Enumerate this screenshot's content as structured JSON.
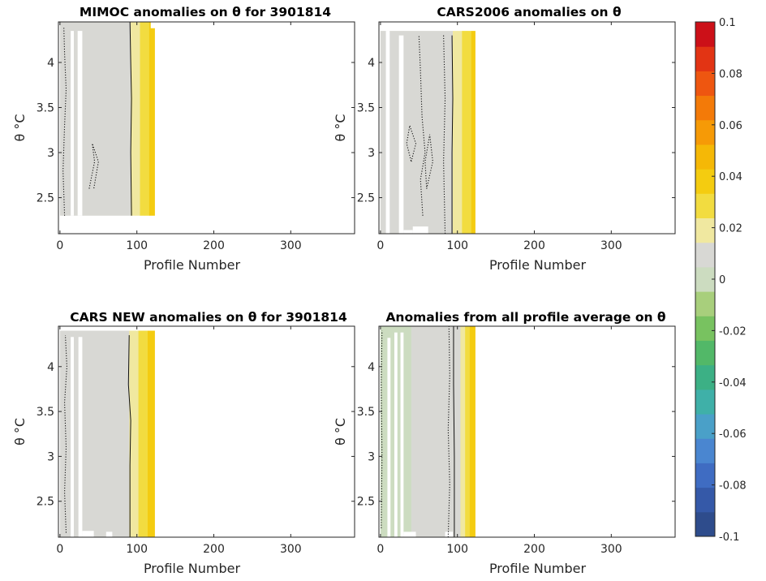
{
  "chart_data": [
    {
      "type": "heatmap",
      "title": "MIMOC anomalies on θ  for 3901814",
      "xlabel": "Profile Number",
      "ylabel": "θ °C",
      "xlim": [
        -2,
        383
      ],
      "ylim": [
        2.1,
        4.45
      ],
      "xticks": [
        0,
        100,
        200,
        300
      ],
      "yticks": [
        2.5,
        3,
        3.5,
        4
      ],
      "y_data_range": [
        2.3,
        4.45
      ],
      "x_data_range": [
        0,
        123
      ],
      "columns": [
        {
          "x0": 0,
          "x1": 8,
          "value": 0.008
        },
        {
          "x0": 8,
          "x1": 30,
          "value": 0.01
        },
        {
          "x0": 30,
          "x1": 92,
          "value": 0.011
        },
        {
          "x0": 92,
          "x1": 98,
          "value": 0.016
        },
        {
          "x0": 98,
          "x1": 104,
          "value": 0.022
        },
        {
          "x0": 104,
          "x1": 110,
          "value": 0.026
        },
        {
          "x0": 110,
          "x1": 116,
          "value": 0.03
        },
        {
          "x0": 116,
          "x1": 123,
          "value": 0.037
        }
      ],
      "gaps": [
        {
          "x0": 14,
          "x1": 18,
          "y0": 2.3,
          "y1": 4.35
        },
        {
          "x0": 23,
          "x1": 29,
          "y0": 2.3,
          "y1": 4.35
        },
        {
          "x0": 118,
          "x1": 124,
          "y0": 4.38,
          "y1": 4.45
        }
      ],
      "zero_contour_x": [
        [
          2.3,
          93
        ],
        [
          3.0,
          92
        ],
        [
          3.6,
          93
        ],
        [
          4.0,
          92
        ],
        [
          4.45,
          91
        ]
      ],
      "dotted_contours": [
        [
          [
            2.3,
            6
          ],
          [
            2.8,
            4
          ],
          [
            3.3,
            6
          ],
          [
            3.7,
            8
          ],
          [
            4.1,
            6
          ],
          [
            4.4,
            5
          ]
        ],
        [
          [
            2.6,
            38
          ],
          [
            2.9,
            45
          ],
          [
            3.1,
            42
          ],
          [
            2.9,
            50
          ],
          [
            2.6,
            44
          ]
        ]
      ]
    },
    {
      "type": "heatmap",
      "title": "CARS2006 anomalies on θ",
      "xlabel": "Profile Number",
      "ylabel": "θ °C",
      "xlim": [
        -2,
        383
      ],
      "ylim": [
        2.1,
        4.45
      ],
      "xticks": [
        0,
        100,
        200,
        300
      ],
      "yticks": [
        2.5,
        3,
        3.5,
        4
      ],
      "y_data_range": [
        2.1,
        4.35
      ],
      "x_data_range": [
        0,
        123
      ],
      "columns": [
        {
          "x0": 0,
          "x1": 30,
          "value": 0.009
        },
        {
          "x0": 30,
          "x1": 94,
          "value": 0.01
        },
        {
          "x0": 94,
          "x1": 100,
          "value": 0.015
        },
        {
          "x0": 100,
          "x1": 106,
          "value": 0.021
        },
        {
          "x0": 106,
          "x1": 112,
          "value": 0.026
        },
        {
          "x0": 112,
          "x1": 118,
          "value": 0.031
        },
        {
          "x0": 118,
          "x1": 123,
          "value": 0.036
        }
      ],
      "gaps": [
        {
          "x0": 7,
          "x1": 12,
          "y0": 2.1,
          "y1": 4.35
        },
        {
          "x0": 24,
          "x1": 30,
          "y0": 2.1,
          "y1": 4.3
        },
        {
          "x0": 30,
          "x1": 42,
          "y0": 2.1,
          "y1": 2.14
        },
        {
          "x0": 42,
          "x1": 62,
          "y0": 2.1,
          "y1": 2.18
        }
      ],
      "zero_contour_x": [
        [
          2.1,
          93
        ],
        [
          3.0,
          93
        ],
        [
          3.6,
          94
        ],
        [
          4.3,
          93
        ]
      ],
      "dotted_contours": [
        [
          [
            2.3,
            55
          ],
          [
            2.7,
            52
          ],
          [
            3.0,
            58
          ],
          [
            3.4,
            54
          ],
          [
            3.9,
            52
          ],
          [
            4.3,
            50
          ]
        ],
        [
          [
            2.9,
            40
          ],
          [
            3.1,
            46
          ],
          [
            3.3,
            38
          ],
          [
            3.1,
            34
          ],
          [
            2.9,
            40
          ]
        ],
        [
          [
            2.6,
            60
          ],
          [
            2.9,
            68
          ],
          [
            3.2,
            64
          ],
          [
            2.9,
            58
          ],
          [
            2.6,
            60
          ]
        ],
        [
          [
            2.1,
            84
          ],
          [
            2.9,
            82
          ],
          [
            3.6,
            84
          ],
          [
            4.3,
            82
          ]
        ]
      ]
    },
    {
      "type": "heatmap",
      "title": "CARS NEW anomalies on θ for 3901814",
      "xlabel": "Profile Number",
      "ylabel": "θ °C",
      "xlim": [
        -2,
        383
      ],
      "ylim": [
        2.1,
        4.45
      ],
      "xticks": [
        0,
        100,
        200,
        300
      ],
      "yticks": [
        2.5,
        3,
        3.5,
        4
      ],
      "y_data_range": [
        2.1,
        4.4
      ],
      "x_data_range": [
        0,
        123
      ],
      "columns": [
        {
          "x0": 0,
          "x1": 30,
          "value": 0.009
        },
        {
          "x0": 30,
          "x1": 90,
          "value": 0.011
        },
        {
          "x0": 90,
          "x1": 96,
          "value": 0.016
        },
        {
          "x0": 96,
          "x1": 102,
          "value": 0.021
        },
        {
          "x0": 102,
          "x1": 108,
          "value": 0.025
        },
        {
          "x0": 108,
          "x1": 114,
          "value": 0.029
        },
        {
          "x0": 114,
          "x1": 123,
          "value": 0.036
        }
      ],
      "gaps": [
        {
          "x0": 14,
          "x1": 18,
          "y0": 2.1,
          "y1": 4.33
        },
        {
          "x0": 24,
          "x1": 29,
          "y0": 2.1,
          "y1": 4.33
        },
        {
          "x0": 29,
          "x1": 44,
          "y0": 2.1,
          "y1": 2.17
        },
        {
          "x0": 60,
          "x1": 68,
          "y0": 2.1,
          "y1": 2.16
        }
      ],
      "zero_contour_x": [
        [
          2.1,
          91
        ],
        [
          2.9,
          91
        ],
        [
          3.4,
          92
        ],
        [
          3.8,
          89
        ],
        [
          4.35,
          90
        ]
      ],
      "dotted_contours": [
        [
          [
            2.15,
            8
          ],
          [
            2.6,
            6
          ],
          [
            3.1,
            8
          ],
          [
            3.6,
            6
          ],
          [
            4.0,
            9
          ],
          [
            4.35,
            7
          ]
        ]
      ]
    },
    {
      "type": "heatmap",
      "title": "Anomalies from all profile average on θ",
      "xlabel": "Profile Number",
      "ylabel": "θ °C",
      "xlim": [
        -2,
        383
      ],
      "ylim": [
        2.1,
        4.45
      ],
      "xticks": [
        0,
        100,
        200,
        300
      ],
      "yticks": [
        2.5,
        3,
        3.5,
        4
      ],
      "y_data_range": [
        2.1,
        4.45
      ],
      "x_data_range": [
        0,
        123
      ],
      "columns": [
        {
          "x0": 0,
          "x1": 40,
          "value": 0.004
        },
        {
          "x0": 40,
          "x1": 80,
          "value": 0.006
        },
        {
          "x0": 80,
          "x1": 96,
          "value": 0.009
        },
        {
          "x0": 96,
          "x1": 104,
          "value": 0.014
        },
        {
          "x0": 104,
          "x1": 110,
          "value": 0.02
        },
        {
          "x0": 110,
          "x1": 116,
          "value": 0.027
        },
        {
          "x0": 116,
          "x1": 123,
          "value": 0.036
        }
      ],
      "gaps": [
        {
          "x0": 9,
          "x1": 13,
          "y0": 2.1,
          "y1": 4.32
        },
        {
          "x0": 18,
          "x1": 22,
          "y0": 2.1,
          "y1": 4.38
        },
        {
          "x0": 26,
          "x1": 30,
          "y0": 2.1,
          "y1": 4.38
        },
        {
          "x0": 30,
          "x1": 46,
          "y0": 2.1,
          "y1": 2.16
        },
        {
          "x0": 84,
          "x1": 94,
          "y0": 2.1,
          "y1": 2.16
        }
      ],
      "zero_contour_x": [
        [
          2.1,
          96
        ],
        [
          3.0,
          96
        ],
        [
          3.8,
          95
        ],
        [
          4.45,
          95
        ]
      ],
      "dotted_contours": [
        [
          [
            2.1,
            88
          ],
          [
            2.7,
            90
          ],
          [
            3.3,
            88
          ],
          [
            3.9,
            90
          ],
          [
            4.45,
            89
          ]
        ],
        [
          [
            2.2,
            1
          ],
          [
            3.0,
            2
          ],
          [
            3.8,
            1
          ],
          [
            4.4,
            2
          ]
        ]
      ]
    }
  ],
  "colorbar": {
    "min": -0.1,
    "max": 0.1,
    "levels": 21,
    "ticks": [
      0.1,
      0.08,
      0.06,
      0.04,
      0.02,
      0,
      -0.02,
      -0.04,
      -0.06,
      -0.08,
      -0.1
    ],
    "tick_labels": [
      "0.1",
      "0.08",
      "0.06",
      "0.04",
      "0.02",
      "0",
      "-0.02",
      "-0.04",
      "-0.06",
      "-0.08",
      "-0.1"
    ],
    "colors": [
      "#2e4c8c",
      "#3559a8",
      "#3f6cc2",
      "#4a86d0",
      "#4aa0c8",
      "#3fb0a8",
      "#3cb085",
      "#52b868",
      "#78c260",
      "#a8cf7c",
      "#ccdcc0",
      "#d8d8d4",
      "#f0e8a0",
      "#f2dc40",
      "#f4cc10",
      "#f5b806",
      "#f69a06",
      "#f37a08",
      "#ee5610",
      "#e23414",
      "#cc1018"
    ],
    "neutral_color": "#d6d6d4"
  }
}
